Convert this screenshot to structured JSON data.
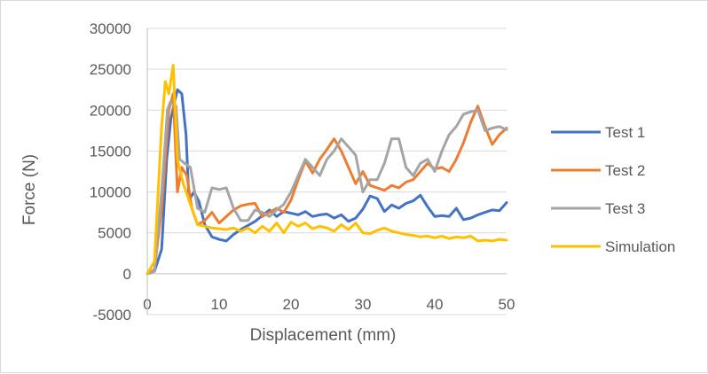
{
  "chart_data": {
    "type": "line",
    "title": "",
    "xlabel": "Displacement (mm)",
    "ylabel": "Force (N)",
    "xlim": [
      0,
      50
    ],
    "ylim": [
      -5000,
      30000
    ],
    "x_ticks": [
      "0",
      "10",
      "20",
      "30",
      "40",
      "50"
    ],
    "y_ticks": [
      "30000",
      "25000",
      "20000",
      "15000",
      "10000",
      "5000",
      "0",
      "-5000"
    ],
    "grid": true,
    "legend_position": "right",
    "series": [
      {
        "name": "Test 1",
        "color": "#4472C4",
        "x": [
          0,
          1,
          2,
          2.7,
          3.3,
          4.2,
          4.8,
          5.4,
          5.8,
          6.5,
          7.2,
          8,
          9,
          10,
          11,
          12,
          13,
          14,
          15,
          16,
          17,
          18,
          19,
          20,
          21,
          22,
          23,
          24,
          25,
          26,
          27,
          28,
          29,
          30,
          31,
          32,
          33,
          34,
          35,
          36,
          37,
          38,
          39,
          40,
          41,
          42,
          43,
          44,
          45,
          46,
          47,
          48,
          49,
          50
        ],
        "y": [
          0,
          300,
          3000,
          14000,
          19000,
          22500,
          22000,
          17000,
          9000,
          10000,
          8800,
          6000,
          4500,
          4200,
          4000,
          4800,
          5400,
          5900,
          6400,
          7100,
          7800,
          7000,
          7600,
          7400,
          7200,
          7600,
          7000,
          7200,
          7300,
          6800,
          7200,
          6400,
          6800,
          7900,
          9500,
          9200,
          7600,
          8400,
          8000,
          8600,
          8900,
          9600,
          8200,
          7000,
          7100,
          7000,
          8000,
          6600,
          6800,
          7200,
          7500,
          7800,
          7700,
          8700
        ]
      },
      {
        "name": "Test 2",
        "color": "#ED7D31",
        "x": [
          0,
          1,
          2,
          3,
          3.6,
          4.2,
          4.8,
          5.5,
          6.2,
          7,
          8,
          9,
          10,
          11,
          12,
          13,
          14,
          15,
          16,
          17,
          18,
          19,
          20,
          21,
          22,
          23,
          24,
          25,
          26,
          27,
          28,
          29,
          30,
          31,
          32,
          33,
          34,
          35,
          36,
          37,
          38,
          39,
          40,
          41,
          42,
          43,
          44,
          45,
          46,
          47,
          48,
          49,
          50
        ],
        "y": [
          0,
          500,
          8000,
          20000,
          22000,
          10000,
          13000,
          12000,
          8000,
          6000,
          6500,
          7500,
          6200,
          7000,
          7800,
          8300,
          8500,
          8600,
          7000,
          7500,
          8000,
          7500,
          9000,
          11500,
          13800,
          12300,
          14000,
          15200,
          16500,
          15000,
          13000,
          11000,
          12500,
          10800,
          10500,
          10200,
          10800,
          10500,
          11200,
          11500,
          12500,
          13500,
          12800,
          13000,
          12500,
          14000,
          16000,
          18500,
          20500,
          18000,
          15800,
          17000,
          17800
        ]
      },
      {
        "name": "Test 3",
        "color": "#A5A5A5",
        "x": [
          0,
          1,
          2,
          2.8,
          3.2,
          4,
          4.5,
          5.2,
          6,
          7,
          8,
          9,
          10,
          11,
          12,
          13,
          14,
          15,
          16,
          17,
          18,
          19,
          20,
          21,
          22,
          23,
          24,
          25,
          26,
          27,
          28,
          29,
          30,
          31,
          32,
          33,
          34,
          35,
          36,
          37,
          38,
          39,
          40,
          41,
          42,
          43,
          44,
          45,
          46,
          47,
          48,
          49,
          50
        ],
        "y": [
          0,
          300,
          10000,
          20000,
          21000,
          20500,
          14000,
          13500,
          13000,
          8000,
          7500,
          10500,
          10300,
          10500,
          8000,
          6500,
          6500,
          7800,
          7500,
          7000,
          7800,
          8500,
          10000,
          12000,
          14000,
          13000,
          12000,
          14000,
          15000,
          16500,
          15500,
          14500,
          10000,
          11500,
          11500,
          13500,
          16500,
          16500,
          13000,
          12000,
          13500,
          14000,
          12500,
          15000,
          17000,
          18000,
          19500,
          19800,
          20000,
          17500,
          17800,
          18000,
          17600
        ]
      },
      {
        "name": "Simulation",
        "color": "#FFC000",
        "x": [
          0,
          1,
          2,
          2.5,
          3,
          3.6,
          4.2,
          5,
          5.6,
          6.2,
          7,
          8,
          9,
          10,
          11,
          12,
          13,
          14,
          15,
          16,
          17,
          18,
          19,
          20,
          21,
          22,
          23,
          24,
          25,
          26,
          27,
          28,
          29,
          30,
          31,
          32,
          33,
          34,
          35,
          36,
          37,
          38,
          39,
          40,
          41,
          42,
          43,
          44,
          45,
          46,
          47,
          48,
          49,
          50
        ],
        "y": [
          0,
          1500,
          18000,
          23500,
          22000,
          25500,
          14000,
          11000,
          9500,
          8000,
          6000,
          5800,
          5600,
          5500,
          5400,
          5600,
          5200,
          5600,
          5000,
          5800,
          5200,
          6200,
          5000,
          6300,
          5800,
          6200,
          5500,
          5800,
          5600,
          5200,
          6000,
          5400,
          6200,
          5000,
          4900,
          5300,
          5600,
          5200,
          5000,
          4800,
          4700,
          4500,
          4600,
          4400,
          4600,
          4300,
          4500,
          4400,
          4600,
          4000,
          4100,
          4000,
          4200,
          4100
        ]
      }
    ]
  }
}
